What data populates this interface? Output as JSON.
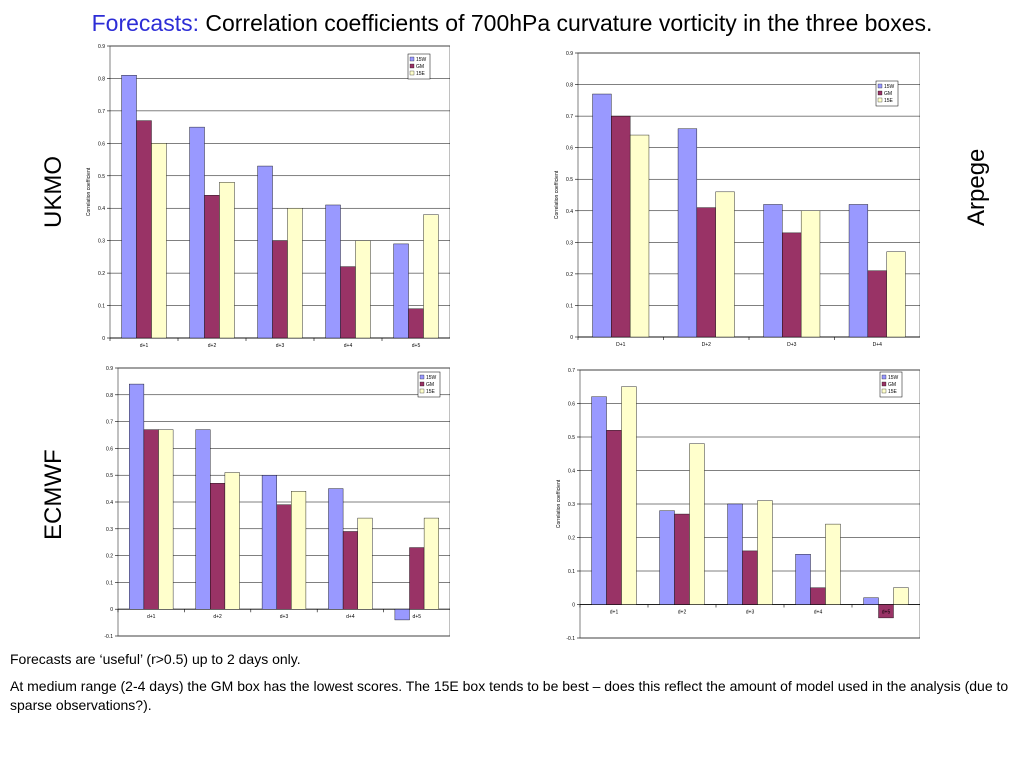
{
  "title": {
    "accent": "Forecasts:",
    "rest": " Correlation coefficients of 700hPa curvature vorticity in the three boxes."
  },
  "side_labels": {
    "ukmo": "UKMO",
    "arpege": "Arpege",
    "ecmwf": "ECMWF"
  },
  "notes": {
    "line1": "Forecasts are ‘useful’ (r>0.5) up to 2 days only.",
    "line2": "At medium range (2-4 days) the GM box has the lowest scores. The 15E box tends to be best – does this reflect the amount of model used in the analysis (due to sparse observations?)."
  },
  "colors": {
    "15W": "#9999ff",
    "GM": "#993366",
    "15E": "#ffffcc",
    "axis": "#808080",
    "grid": "#000000"
  },
  "chart_data": [
    {
      "id": "ukmo",
      "type": "bar",
      "ylabel": "Correlation coefficient",
      "ylim": [
        0,
        0.9
      ],
      "yticks": [
        "0",
        "0.1",
        "0.2",
        "0.3",
        "0.4",
        "0.5",
        "0.6",
        "0.7",
        "0.8",
        "0.9"
      ],
      "categories": [
        "d+1",
        "d+2",
        "d+3",
        "d+4",
        "d+5"
      ],
      "legend_position": "top-right",
      "series": [
        {
          "name": "15W",
          "values": [
            0.81,
            0.65,
            0.53,
            0.41,
            0.29
          ]
        },
        {
          "name": "GM",
          "values": [
            0.67,
            0.44,
            0.3,
            0.22,
            0.09
          ]
        },
        {
          "name": "15E",
          "values": [
            0.6,
            0.48,
            0.4,
            0.3,
            0.38
          ]
        }
      ]
    },
    {
      "id": "arpege",
      "type": "bar",
      "ylabel": "Correlation coefficient",
      "ylim": [
        0,
        0.9
      ],
      "yticks": [
        "0",
        "0.1",
        "0.2",
        "0.3",
        "0.4",
        "0.5",
        "0.6",
        "0.7",
        "0.8",
        "0.9"
      ],
      "categories": [
        "D+1",
        "D+2",
        "D+3",
        "D+4"
      ],
      "legend_position": "top-right",
      "series": [
        {
          "name": "15W",
          "values": [
            0.77,
            0.66,
            0.42,
            0.42
          ]
        },
        {
          "name": "GM",
          "values": [
            0.7,
            0.41,
            0.33,
            0.21
          ]
        },
        {
          "name": "15E",
          "values": [
            0.64,
            0.46,
            0.4,
            0.27
          ]
        }
      ]
    },
    {
      "id": "ecmwf",
      "type": "bar",
      "ylim": [
        -0.1,
        0.9
      ],
      "yticks": [
        "-0.1",
        "0",
        "0.1",
        "0.2",
        "0.3",
        "0.4",
        "0.5",
        "0.6",
        "0.7",
        "0.8",
        "0.9"
      ],
      "categories": [
        "d+1",
        "d+2",
        "d+3",
        "d+4",
        "d+5"
      ],
      "legend_position": "top-right",
      "series": [
        {
          "name": "15W",
          "values": [
            0.84,
            0.67,
            0.5,
            0.45,
            -0.04
          ]
        },
        {
          "name": "GM",
          "values": [
            0.67,
            0.47,
            0.39,
            0.29,
            0.23
          ]
        },
        {
          "name": "15E",
          "values": [
            0.67,
            0.51,
            0.44,
            0.34,
            0.34
          ]
        }
      ]
    },
    {
      "id": "ecmwf-2",
      "type": "bar",
      "ylabel": "Correlation coefficient",
      "ylim": [
        -0.1,
        0.7
      ],
      "yticks": [
        "-0.1",
        "0",
        "0.1",
        "0.2",
        "0.3",
        "0.4",
        "0.5",
        "0.6",
        "0.7"
      ],
      "categories": [
        "d+1",
        "d+2",
        "d+3",
        "d+4",
        "d+5"
      ],
      "legend_position": "top-right",
      "series": [
        {
          "name": "15W",
          "values": [
            0.62,
            0.28,
            0.3,
            0.15,
            0.02
          ]
        },
        {
          "name": "GM",
          "values": [
            0.52,
            0.27,
            0.16,
            0.05,
            -0.04
          ]
        },
        {
          "name": "15E",
          "values": [
            0.65,
            0.48,
            0.31,
            0.24,
            0.05
          ]
        }
      ]
    }
  ]
}
